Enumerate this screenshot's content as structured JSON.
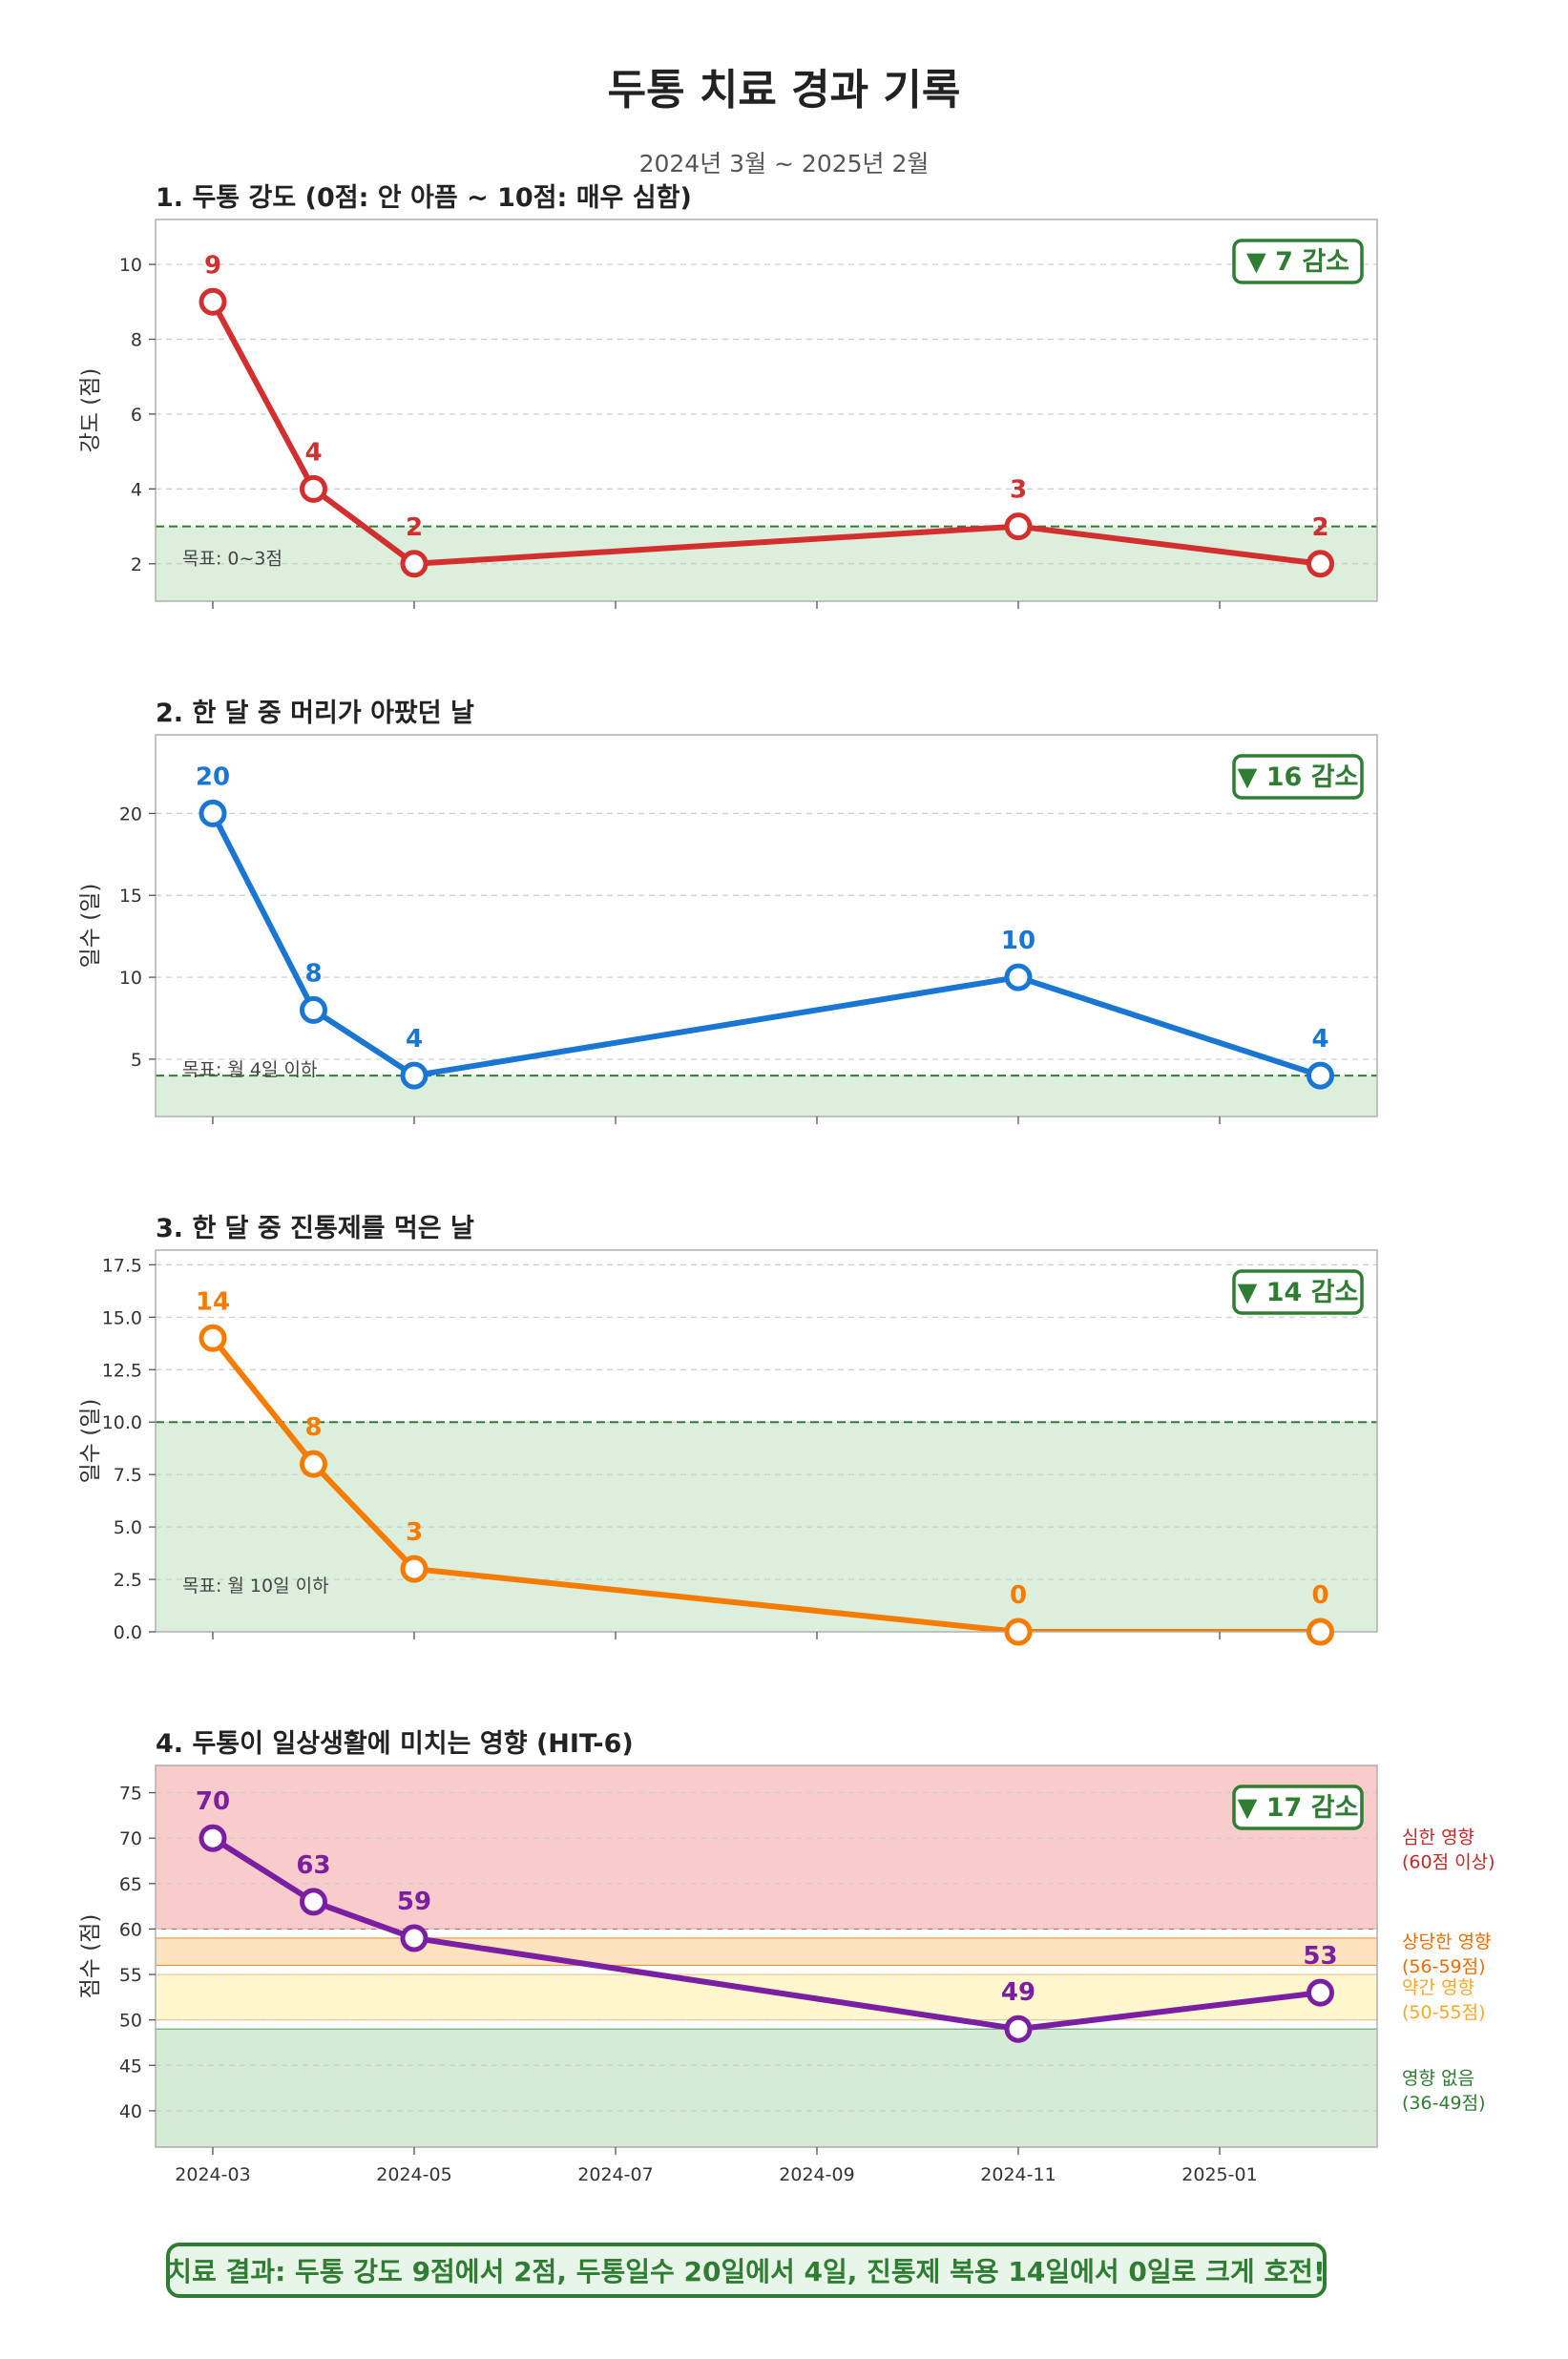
{
  "title": "두통 치료 경과 기록",
  "subtitle": "2024년 3월 ~ 2025년 2월",
  "summary": "치료 결과: 두통 강도 9점에서 2점, 두통일수 20일에서 4일, 진통제 복용 14일에서 0일로 크게 호전!",
  "x_axis": {
    "ticks": [
      "2024-03",
      "2024-05",
      "2024-07",
      "2024-09",
      "2024-11",
      "2025-01"
    ],
    "tick_months": [
      0,
      2,
      4,
      6,
      8,
      10
    ],
    "point_months": [
      0,
      1,
      2,
      8,
      11
    ]
  },
  "chart_data": [
    {
      "type": "line",
      "title": "1. 두통 강도 (0점: 안 아픔 ~ 10점: 매우 심함)",
      "ylabel": "강도 (점)",
      "x": [
        "2024-03",
        "2024-04",
        "2024-05",
        "2024-11",
        "2025-02"
      ],
      "values": [
        9,
        4,
        2,
        3,
        2
      ],
      "ylim": [
        1,
        11.2
      ],
      "yticks": [
        2,
        4,
        6,
        8,
        10
      ],
      "ytick_labels": [
        "2",
        "4",
        "6",
        "8",
        "10"
      ],
      "color": "#d32f2f",
      "goal_line": 3,
      "goal_band": [
        1,
        3
      ],
      "goal_label": "목표: 0~3점",
      "change_badge": "▼ 7 감소",
      "grid": true
    },
    {
      "type": "line",
      "title": "2. 한 달 중 머리가 아팠던 날",
      "ylabel": "일수 (일)",
      "x": [
        "2024-03",
        "2024-04",
        "2024-05",
        "2024-11",
        "2025-02"
      ],
      "values": [
        20,
        8,
        4,
        10,
        4
      ],
      "ylim": [
        1.5,
        24.8
      ],
      "yticks": [
        5,
        10,
        15,
        20
      ],
      "ytick_labels": [
        "5",
        "10",
        "15",
        "20"
      ],
      "color": "#1976d2",
      "goal_line": 4,
      "goal_band": [
        1.5,
        4
      ],
      "goal_label": "목표: 월 4일 이하",
      "change_badge": "▼ 16 감소",
      "grid": true
    },
    {
      "type": "line",
      "title": "3. 한 달 중 진통제를 먹은 날",
      "ylabel": "일수 (일)",
      "x": [
        "2024-03",
        "2024-04",
        "2024-05",
        "2024-11",
        "2025-02"
      ],
      "values": [
        14,
        8,
        3,
        0,
        0
      ],
      "ylim": [
        0,
        18.2
      ],
      "yticks": [
        0,
        2.5,
        5,
        7.5,
        10,
        12.5,
        15,
        17.5
      ],
      "ytick_labels": [
        "0.0",
        "2.5",
        "5.0",
        "7.5",
        "10.0",
        "12.5",
        "15.0",
        "17.5"
      ],
      "color": "#f57c00",
      "goal_line": 10,
      "goal_band": [
        0,
        10
      ],
      "goal_label": "목표: 월 10일 이하",
      "change_badge": "▼ 14 감소",
      "grid": true
    },
    {
      "type": "line",
      "title": "4. 두통이 일상생활에 미치는 영향 (HIT-6)",
      "ylabel": "점수 (점)",
      "x": [
        "2024-03",
        "2024-04",
        "2024-05",
        "2024-11",
        "2025-02"
      ],
      "values": [
        70,
        63,
        59,
        49,
        53
      ],
      "ylim": [
        36,
        78
      ],
      "yticks": [
        40,
        45,
        50,
        55,
        60,
        65,
        70,
        75
      ],
      "ytick_labels": [
        "40",
        "45",
        "50",
        "55",
        "60",
        "65",
        "70",
        "75"
      ],
      "color": "#7b1fa2",
      "change_badge": "▼ 17 감소",
      "grid": true,
      "bands": [
        {
          "from": 60,
          "to": 78,
          "color": "#f9cccc",
          "label1": "심한 영향",
          "label2": "(60점 이상)",
          "label_color": "#c62828"
        },
        {
          "from": 56,
          "to": 59,
          "color": "#fde3bd",
          "label1": "상당한 영향",
          "label2": "(56-59점)",
          "label_color": "#ef6c00"
        },
        {
          "from": 50,
          "to": 55,
          "color": "#fef6cc",
          "label1": "약간 영향",
          "label2": "(50-55점)",
          "label_color": "#f9a825"
        },
        {
          "from": 36,
          "to": 49,
          "color": "#d5ebd6",
          "label1": "영향 없음",
          "label2": "(36-49점)",
          "label_color": "#2e7d32"
        }
      ]
    }
  ]
}
